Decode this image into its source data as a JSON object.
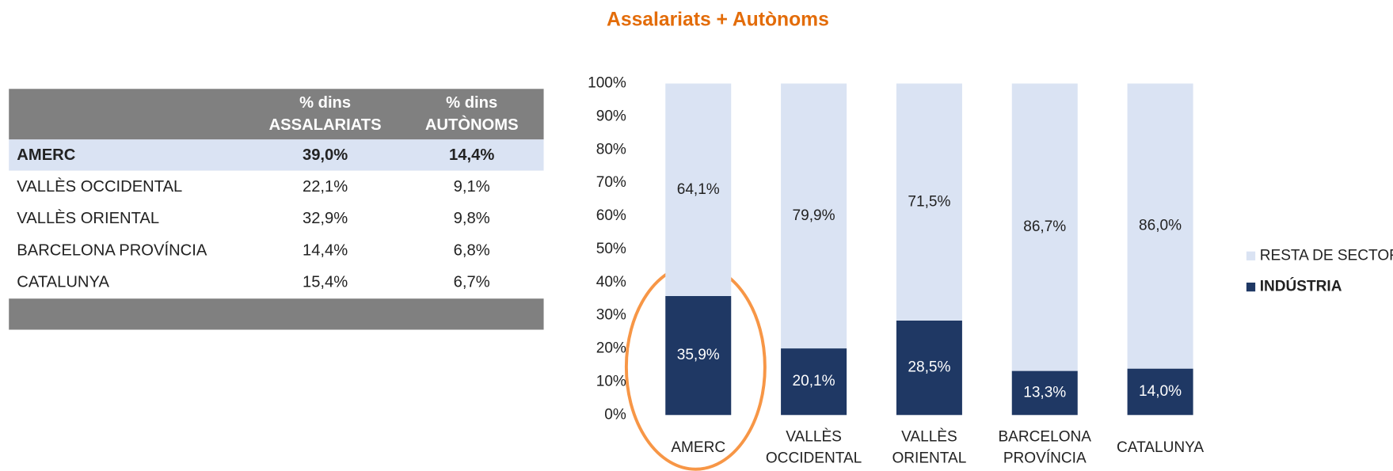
{
  "table": {
    "header": [
      "% dins\nASSALARIATS",
      "% dins\nAUTÒNOMS"
    ],
    "rows": [
      [
        "AMERC",
        "39,0%",
        "14,4%"
      ],
      [
        "VALLÈS OCCIDENTAL",
        "22,1%",
        "9,1%"
      ],
      [
        "VALLÈS ORIENTAL",
        "32,9%",
        "9,8%"
      ],
      [
        "BARCELONA PROVÍNCIA",
        "14,4%",
        "6,8%"
      ],
      [
        "CATALUNYA",
        "15,4%",
        "6,7%"
      ]
    ]
  },
  "chart_data": {
    "type": "stacked_bar",
    "title": "Assalariats  +  Autònoms",
    "categories": [
      "AMERC",
      "VALLÈS\nOCCIDENTAL",
      "VALLÈS\nORIENTAL",
      "BARCELONA\nPROVÍNCIA",
      "CATALUNYA"
    ],
    "series": [
      {
        "name": "INDÚSTRIA",
        "color": "#1f3864",
        "label_color": "#ffffff",
        "values": [
          35.9,
          20.1,
          28.5,
          13.3,
          14.0
        ],
        "value_labels": [
          "35,9%",
          "20,1%",
          "28,5%",
          "13,3%",
          "14,0%"
        ]
      },
      {
        "name": "RESTA DE SECTORS",
        "color": "#dae3f3",
        "label_color": "#222222",
        "values": [
          64.1,
          79.9,
          71.5,
          86.7,
          86.0
        ],
        "value_labels": [
          "64,1%",
          "79,9%",
          "71,5%",
          "86,7%",
          "86,0%"
        ]
      }
    ],
    "ylim": [
      0,
      100
    ],
    "yticks": [
      {
        "value": 0,
        "label": "0%"
      },
      {
        "value": 10,
        "label": "10%"
      },
      {
        "value": 20,
        "label": "20%"
      },
      {
        "value": 30,
        "label": "30%"
      },
      {
        "value": 40,
        "label": "40%"
      },
      {
        "value": 50,
        "label": "50%"
      },
      {
        "value": 60,
        "label": "60%"
      },
      {
        "value": 70,
        "label": "70%"
      },
      {
        "value": 80,
        "label": "80%"
      },
      {
        "value": 90,
        "label": "90%"
      },
      {
        "value": 100,
        "label": "100%"
      }
    ],
    "legend": "right"
  }
}
